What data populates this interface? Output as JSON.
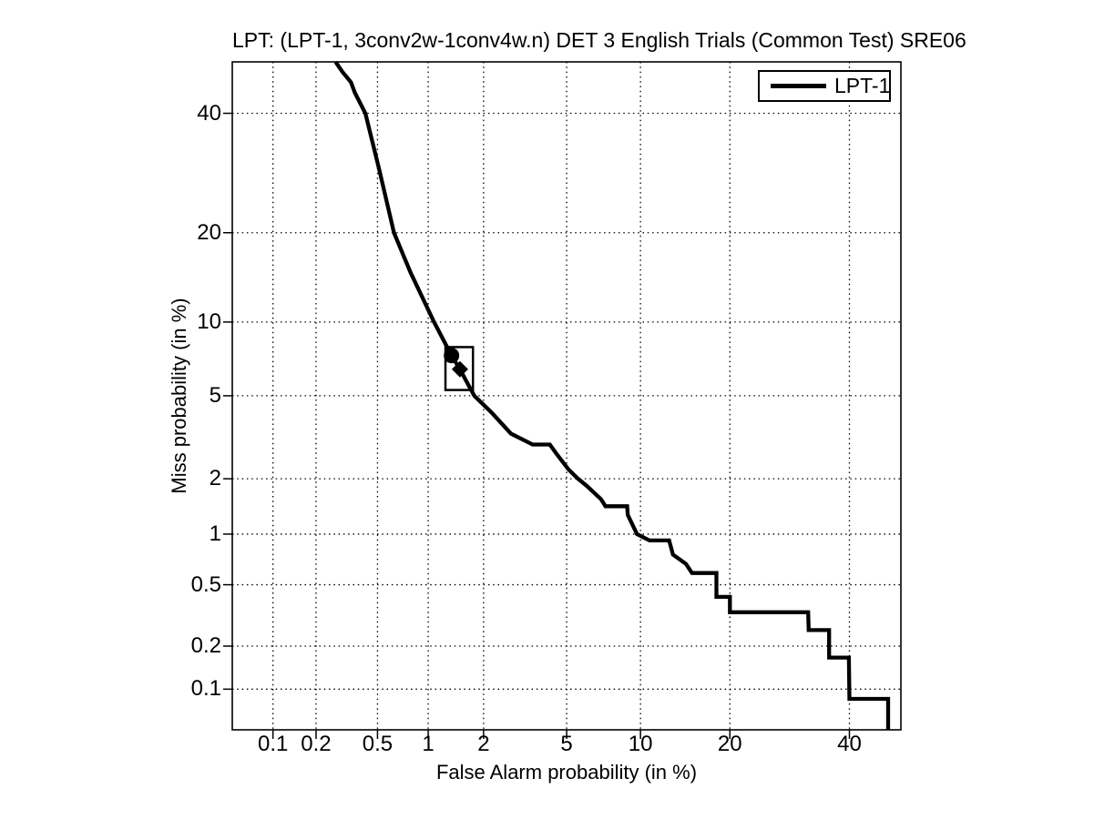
{
  "figure": {
    "background": "#ffffff",
    "foreground": "#000000"
  },
  "chart_data": {
    "type": "line",
    "subtype": "DET-curve",
    "title": "LPT: (LPT-1, 3conv2w-1conv4w.n) DET 3 English Trials (Common Test) SRE06",
    "xlabel": "False Alarm probability (in %)",
    "ylabel": "Miss probability (in %)",
    "scale": "probit",
    "grid": "dotted",
    "xlim": [
      0.05,
      50
    ],
    "ylim": [
      0.05,
      50
    ],
    "x_ticks": [
      0.1,
      0.2,
      0.5,
      1,
      2,
      5,
      10,
      20,
      40
    ],
    "x_tick_labels": [
      "0.1",
      "0.2",
      "0.5",
      "1",
      "2",
      "5",
      "10",
      "20",
      "40"
    ],
    "y_ticks": [
      40,
      20,
      10,
      5,
      2,
      1,
      0.5,
      0.2,
      0.1
    ],
    "y_tick_labels": [
      "40",
      "20",
      "10",
      "5",
      "2",
      "1",
      "0.5",
      "0.2",
      "0.1"
    ],
    "legend_position": "top-right",
    "series": [
      {
        "name": "LPT-1",
        "color": "#000000",
        "line_width": 4,
        "points": [
          [
            0.27,
            50
          ],
          [
            0.3,
            48
          ],
          [
            0.34,
            46
          ],
          [
            0.36,
            44
          ],
          [
            0.42,
            40
          ],
          [
            0.51,
            30
          ],
          [
            0.63,
            20
          ],
          [
            0.79,
            15
          ],
          [
            1.08,
            10
          ],
          [
            1.35,
            7.4
          ],
          [
            1.5,
            6.5
          ],
          [
            1.62,
            5.8
          ],
          [
            1.79,
            5.0
          ],
          [
            2.2,
            4.2
          ],
          [
            2.75,
            3.35
          ],
          [
            3.5,
            2.97
          ],
          [
            4.2,
            2.97
          ],
          [
            4.5,
            2.68
          ],
          [
            5.1,
            2.23
          ],
          [
            5.6,
            2.0
          ],
          [
            6.1,
            1.84
          ],
          [
            7.0,
            1.56
          ],
          [
            7.3,
            1.43
          ],
          [
            8.9,
            1.43
          ],
          [
            8.95,
            1.28
          ],
          [
            9.7,
            1.0
          ],
          [
            10.8,
            0.92
          ],
          [
            12.7,
            0.92
          ],
          [
            13.1,
            0.76
          ],
          [
            14.5,
            0.67
          ],
          [
            15.2,
            0.59
          ],
          [
            18.2,
            0.59
          ],
          [
            18.2,
            0.42
          ],
          [
            20.0,
            0.42
          ],
          [
            20.0,
            0.335
          ],
          [
            32.4,
            0.335
          ],
          [
            32.5,
            0.256
          ],
          [
            36.2,
            0.256
          ],
          [
            36.2,
            0.167
          ],
          [
            39.9,
            0.167
          ],
          [
            40.0,
            0.085
          ],
          [
            47.5,
            0.085
          ],
          [
            47.5,
            0.05
          ]
        ]
      }
    ],
    "markers": [
      {
        "shape": "circle",
        "fa": 1.35,
        "miss": 7.4,
        "color": "#000000"
      },
      {
        "shape": "diamond",
        "fa": 1.5,
        "miss": 6.5,
        "color": "#000000"
      }
    ],
    "annotation_box": {
      "fa_min": 1.25,
      "fa_max": 1.76,
      "miss_min": 5.3,
      "miss_max": 8.0
    }
  }
}
